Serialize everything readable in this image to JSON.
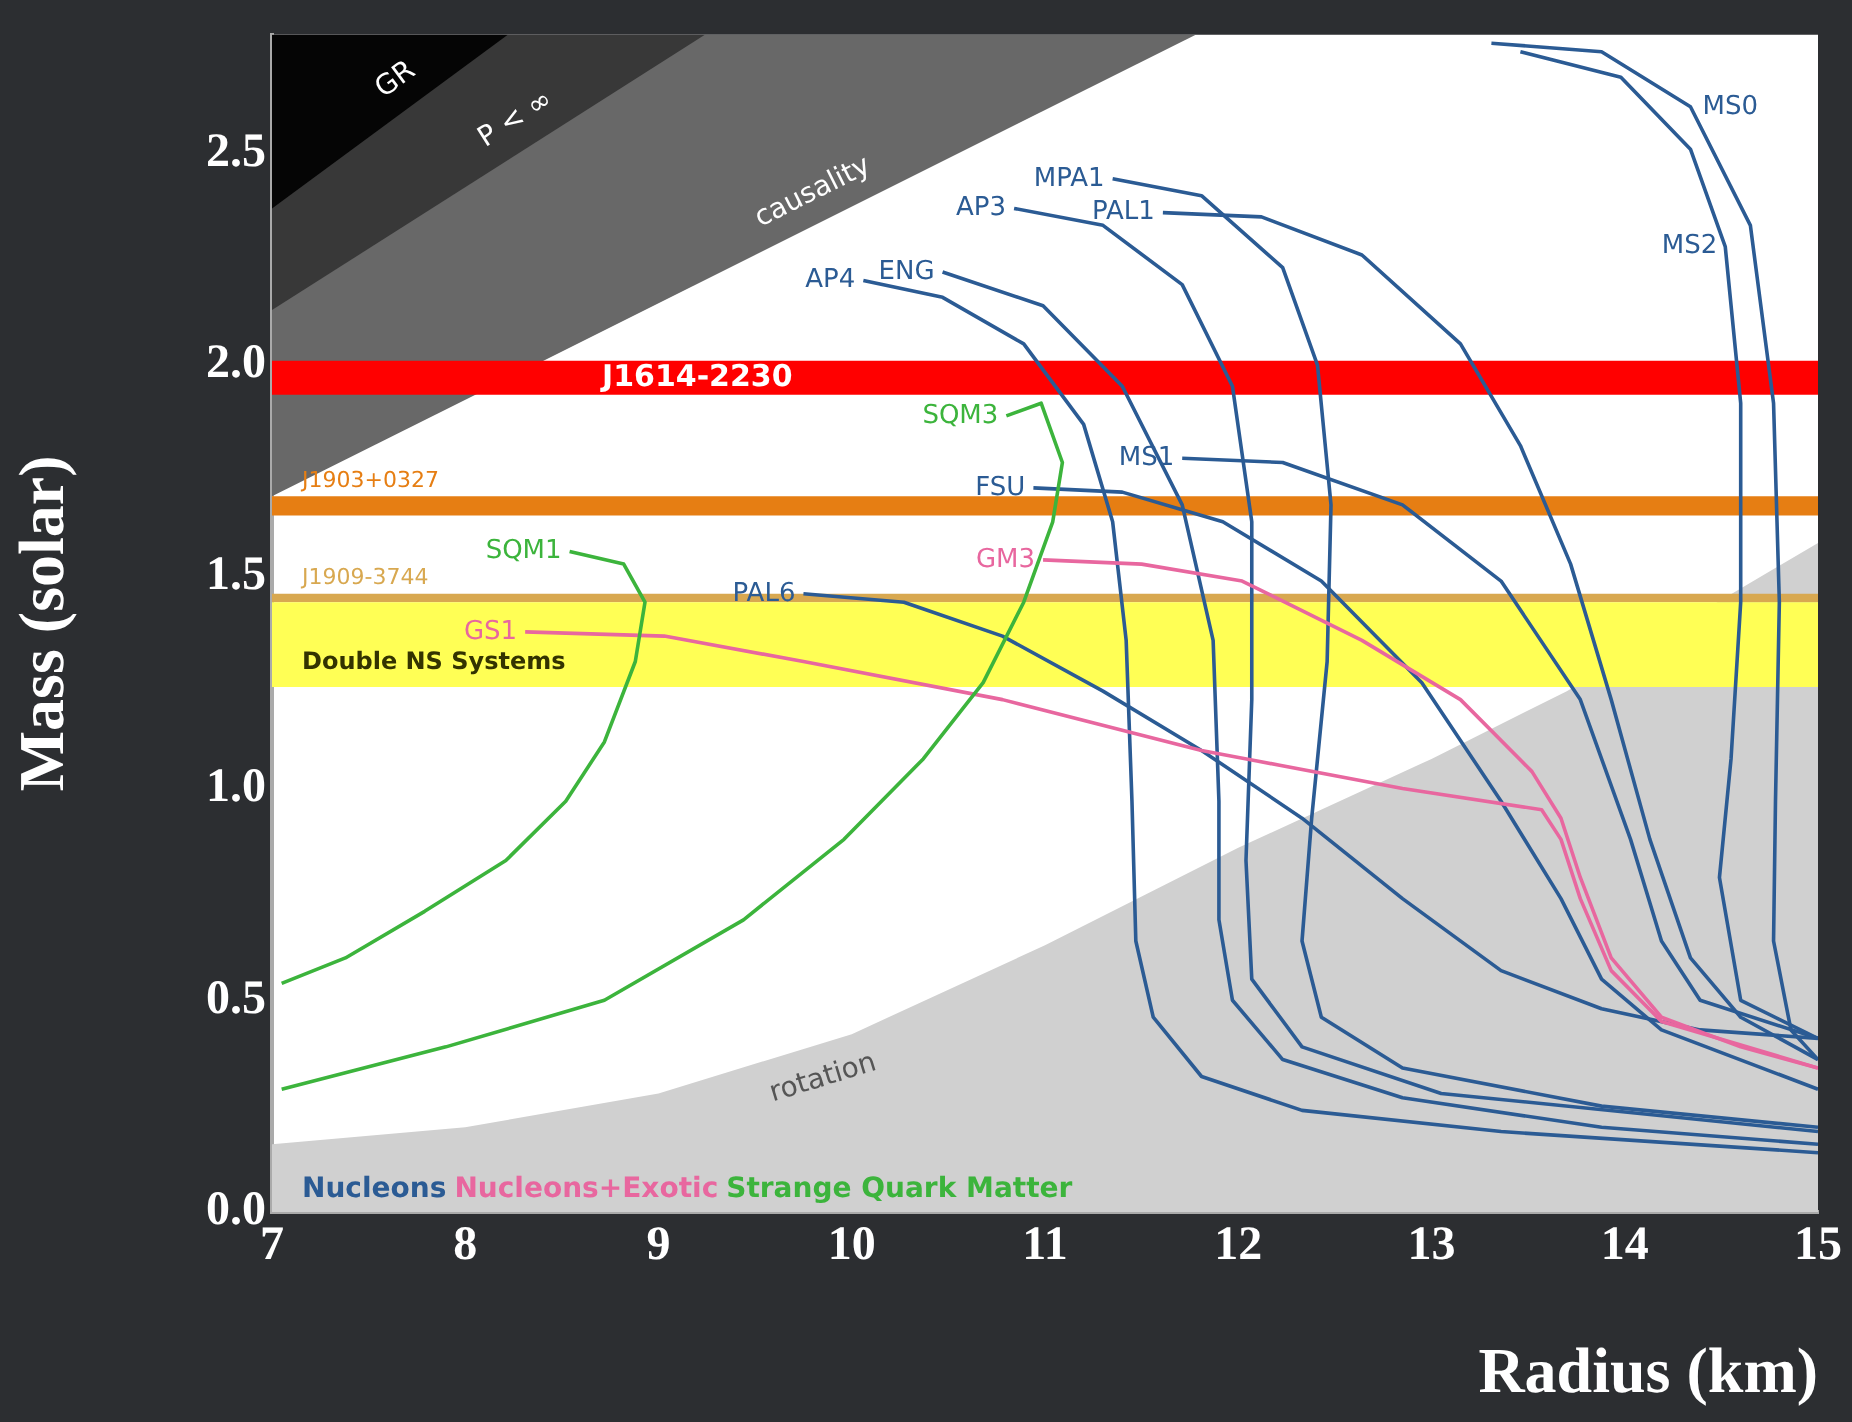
{
  "chart_data": {
    "type": "line",
    "xlabel": "Radius (km)",
    "ylabel": "Mass (solar)",
    "xlim": [
      7,
      15
    ],
    "xticks": [
      7,
      8,
      9,
      10,
      11,
      12,
      13,
      14,
      15
    ],
    "ylim": [
      0,
      2.78
    ],
    "yticks": [
      {
        "value": 0,
        "label": "0.0"
      },
      {
        "value": 0.5,
        "label": "0.5"
      },
      {
        "value": 1,
        "label": "1.0"
      },
      {
        "value": 1.5,
        "label": "1.5"
      },
      {
        "value": 2,
        "label": "2.0"
      },
      {
        "value": 2.5,
        "label": "2.5"
      }
    ],
    "series": [
      {
        "name": "causality",
        "type": "area",
        "color": "#686868",
        "x": [
          7,
          11.78
        ],
        "values": [
          1.69,
          2.78
        ]
      },
      {
        "name": "P < ∞",
        "type": "area",
        "color": "#383838",
        "x": [
          7,
          9.24
        ],
        "values": [
          2.13,
          2.78
        ]
      },
      {
        "name": "GR",
        "type": "area",
        "color": "#050505",
        "x": [
          7,
          8.22
        ],
        "values": [
          2.37,
          2.78
        ]
      },
      {
        "name": "rotation",
        "type": "area",
        "color": "#d0d0d0",
        "x": [
          7,
          8,
          9,
          10,
          11,
          12,
          13,
          13.7,
          15
        ],
        "values": [
          0.16,
          0.2,
          0.28,
          0.42,
          0.63,
          0.86,
          1.07,
          1.23,
          1.58
        ]
      },
      {
        "name": "AP4",
        "color": "#2b5b94",
        "x": [
          10.06,
          10.47,
          10.89,
          11.2,
          11.35,
          11.42,
          11.45,
          11.47,
          11.56,
          11.81,
          12.33,
          13.36,
          15
        ],
        "values": [
          2.2,
          2.16,
          2.05,
          1.86,
          1.63,
          1.35,
          0.97,
          0.64,
          0.46,
          0.32,
          0.24,
          0.19,
          0.14
        ]
      },
      {
        "name": "ENG",
        "color": "#2b5b94",
        "x": [
          10.47,
          10.99,
          11.4,
          11.71,
          11.87,
          11.9,
          11.9,
          11.97,
          12.23,
          12.85,
          13.88,
          15
        ],
        "values": [
          2.22,
          2.14,
          1.95,
          1.67,
          1.35,
          0.97,
          0.69,
          0.5,
          0.36,
          0.27,
          0.2,
          0.16
        ]
      },
      {
        "name": "AP3",
        "color": "#2b5b94",
        "x": [
          10.84,
          11.3,
          11.71,
          11.97,
          12.07,
          12.07,
          12.04,
          12.07,
          12.33,
          13.05,
          15
        ],
        "values": [
          2.37,
          2.33,
          2.19,
          1.95,
          1.63,
          1.21,
          0.83,
          0.55,
          0.39,
          0.28,
          0.19
        ]
      },
      {
        "name": "MPA1",
        "color": "#2b5b94",
        "x": [
          11.35,
          11.81,
          12.23,
          12.41,
          12.48,
          12.46,
          12.38,
          12.33,
          12.43,
          12.85,
          13.88,
          15
        ],
        "values": [
          2.44,
          2.4,
          2.23,
          2,
          1.67,
          1.3,
          0.93,
          0.64,
          0.46,
          0.34,
          0.25,
          0.2
        ]
      },
      {
        "name": "PAL1",
        "color": "#2b5b94",
        "x": [
          11.61,
          12.12,
          12.64,
          13.15,
          13.46,
          13.72,
          13.93,
          14.13,
          14.34,
          14.6,
          15
        ],
        "values": [
          2.36,
          2.35,
          2.26,
          2.05,
          1.81,
          1.53,
          1.21,
          0.88,
          0.6,
          0.46,
          0.36
        ]
      },
      {
        "name": "MS0",
        "color": "#2b5b94",
        "x": [
          13.31,
          13.88,
          14.34,
          14.65,
          14.77,
          14.8,
          14.78,
          14.77,
          14.86,
          15
        ],
        "values": [
          2.76,
          2.74,
          2.61,
          2.33,
          1.91,
          1.44,
          0.97,
          0.64,
          0.43,
          0.36
        ]
      },
      {
        "name": "MS2",
        "color": "#2b5b94",
        "x": [
          13.46,
          13.98,
          14.34,
          14.52,
          14.6,
          14.6,
          14.55,
          14.49,
          14.6,
          15
        ],
        "values": [
          2.74,
          2.68,
          2.51,
          2.28,
          1.91,
          1.44,
          1.07,
          0.79,
          0.5,
          0.41
        ]
      },
      {
        "name": "MS1",
        "color": "#2b5b94",
        "x": [
          11.71,
          12.23,
          12.85,
          13.36,
          13.77,
          14.03,
          14.19,
          14.39,
          15
        ],
        "values": [
          1.78,
          1.77,
          1.67,
          1.49,
          1.21,
          0.88,
          0.64,
          0.5,
          0.41
        ]
      },
      {
        "name": "FSU",
        "color": "#2b5b94",
        "x": [
          10.94,
          11.4,
          11.92,
          12.43,
          12.95,
          13.36,
          13.67,
          13.88,
          14.19,
          15
        ],
        "values": [
          1.71,
          1.7,
          1.63,
          1.49,
          1.25,
          0.97,
          0.74,
          0.55,
          0.43,
          0.29
        ]
      },
      {
        "name": "PAL6",
        "color": "#2b5b94",
        "x": [
          9.75,
          10.27,
          10.78,
          11.3,
          11.81,
          12.33,
          12.85,
          13.36,
          13.88,
          14.39,
          15
        ],
        "values": [
          1.46,
          1.44,
          1.36,
          1.23,
          1.09,
          0.93,
          0.74,
          0.57,
          0.48,
          0.43,
          0.41
        ]
      },
      {
        "name": "GM3",
        "color": "#e8679f",
        "x": [
          10.99,
          11.5,
          12.02,
          12.64,
          13.15,
          13.52,
          13.67,
          13.77,
          13.93,
          14.19,
          14.6,
          15
        ],
        "values": [
          1.54,
          1.53,
          1.49,
          1.35,
          1.21,
          1.04,
          0.93,
          0.79,
          0.6,
          0.46,
          0.39,
          0.34
        ]
      },
      {
        "name": "GS1",
        "color": "#e8679f",
        "x": [
          8.31,
          9.03,
          9.75,
          10.78,
          11.81,
          12.85,
          13.57,
          13.67,
          13.77,
          13.93,
          14.19,
          15
        ],
        "values": [
          1.37,
          1.36,
          1.3,
          1.21,
          1.09,
          1,
          0.95,
          0.88,
          0.74,
          0.57,
          0.45,
          0.34
        ]
      },
      {
        "name": "SQM1",
        "color": "#3cb43c",
        "x": [
          8.54,
          8.82,
          8.93,
          8.88,
          8.72,
          8.52,
          8.21,
          7.79,
          7.38,
          7.05
        ],
        "values": [
          1.56,
          1.53,
          1.44,
          1.3,
          1.11,
          0.97,
          0.83,
          0.71,
          0.6,
          0.54
        ]
      },
      {
        "name": "SQM3",
        "color": "#3cb43c",
        "x": [
          10.8,
          10.98,
          11.09,
          11.04,
          10.89,
          10.68,
          10.37,
          9.96,
          9.44,
          8.72,
          7.9,
          7.05
        ],
        "values": [
          1.88,
          1.91,
          1.77,
          1.63,
          1.44,
          1.25,
          1.07,
          0.88,
          0.69,
          0.5,
          0.39,
          0.29
        ]
      }
    ],
    "bands": [
      {
        "axis": "y",
        "from": 1.93,
        "to": 2.01,
        "label": "J1614-2230",
        "color": "#ff0000"
      },
      {
        "axis": "y",
        "from": 1.645,
        "to": 1.69,
        "label": "J1903+0327",
        "color": "#e67e13"
      },
      {
        "axis": "y",
        "from": 1.44,
        "to": 1.46,
        "label": "J1909-3744",
        "color": "#d8a850"
      },
      {
        "axis": "y",
        "from": 1.24,
        "to": 1.44,
        "label": "Double NS Systems",
        "color": "#ffff55"
      }
    ],
    "annotations": [
      "Nucleons",
      "Nucleons+Exotic",
      "Strange Quark Matter"
    ]
  }
}
